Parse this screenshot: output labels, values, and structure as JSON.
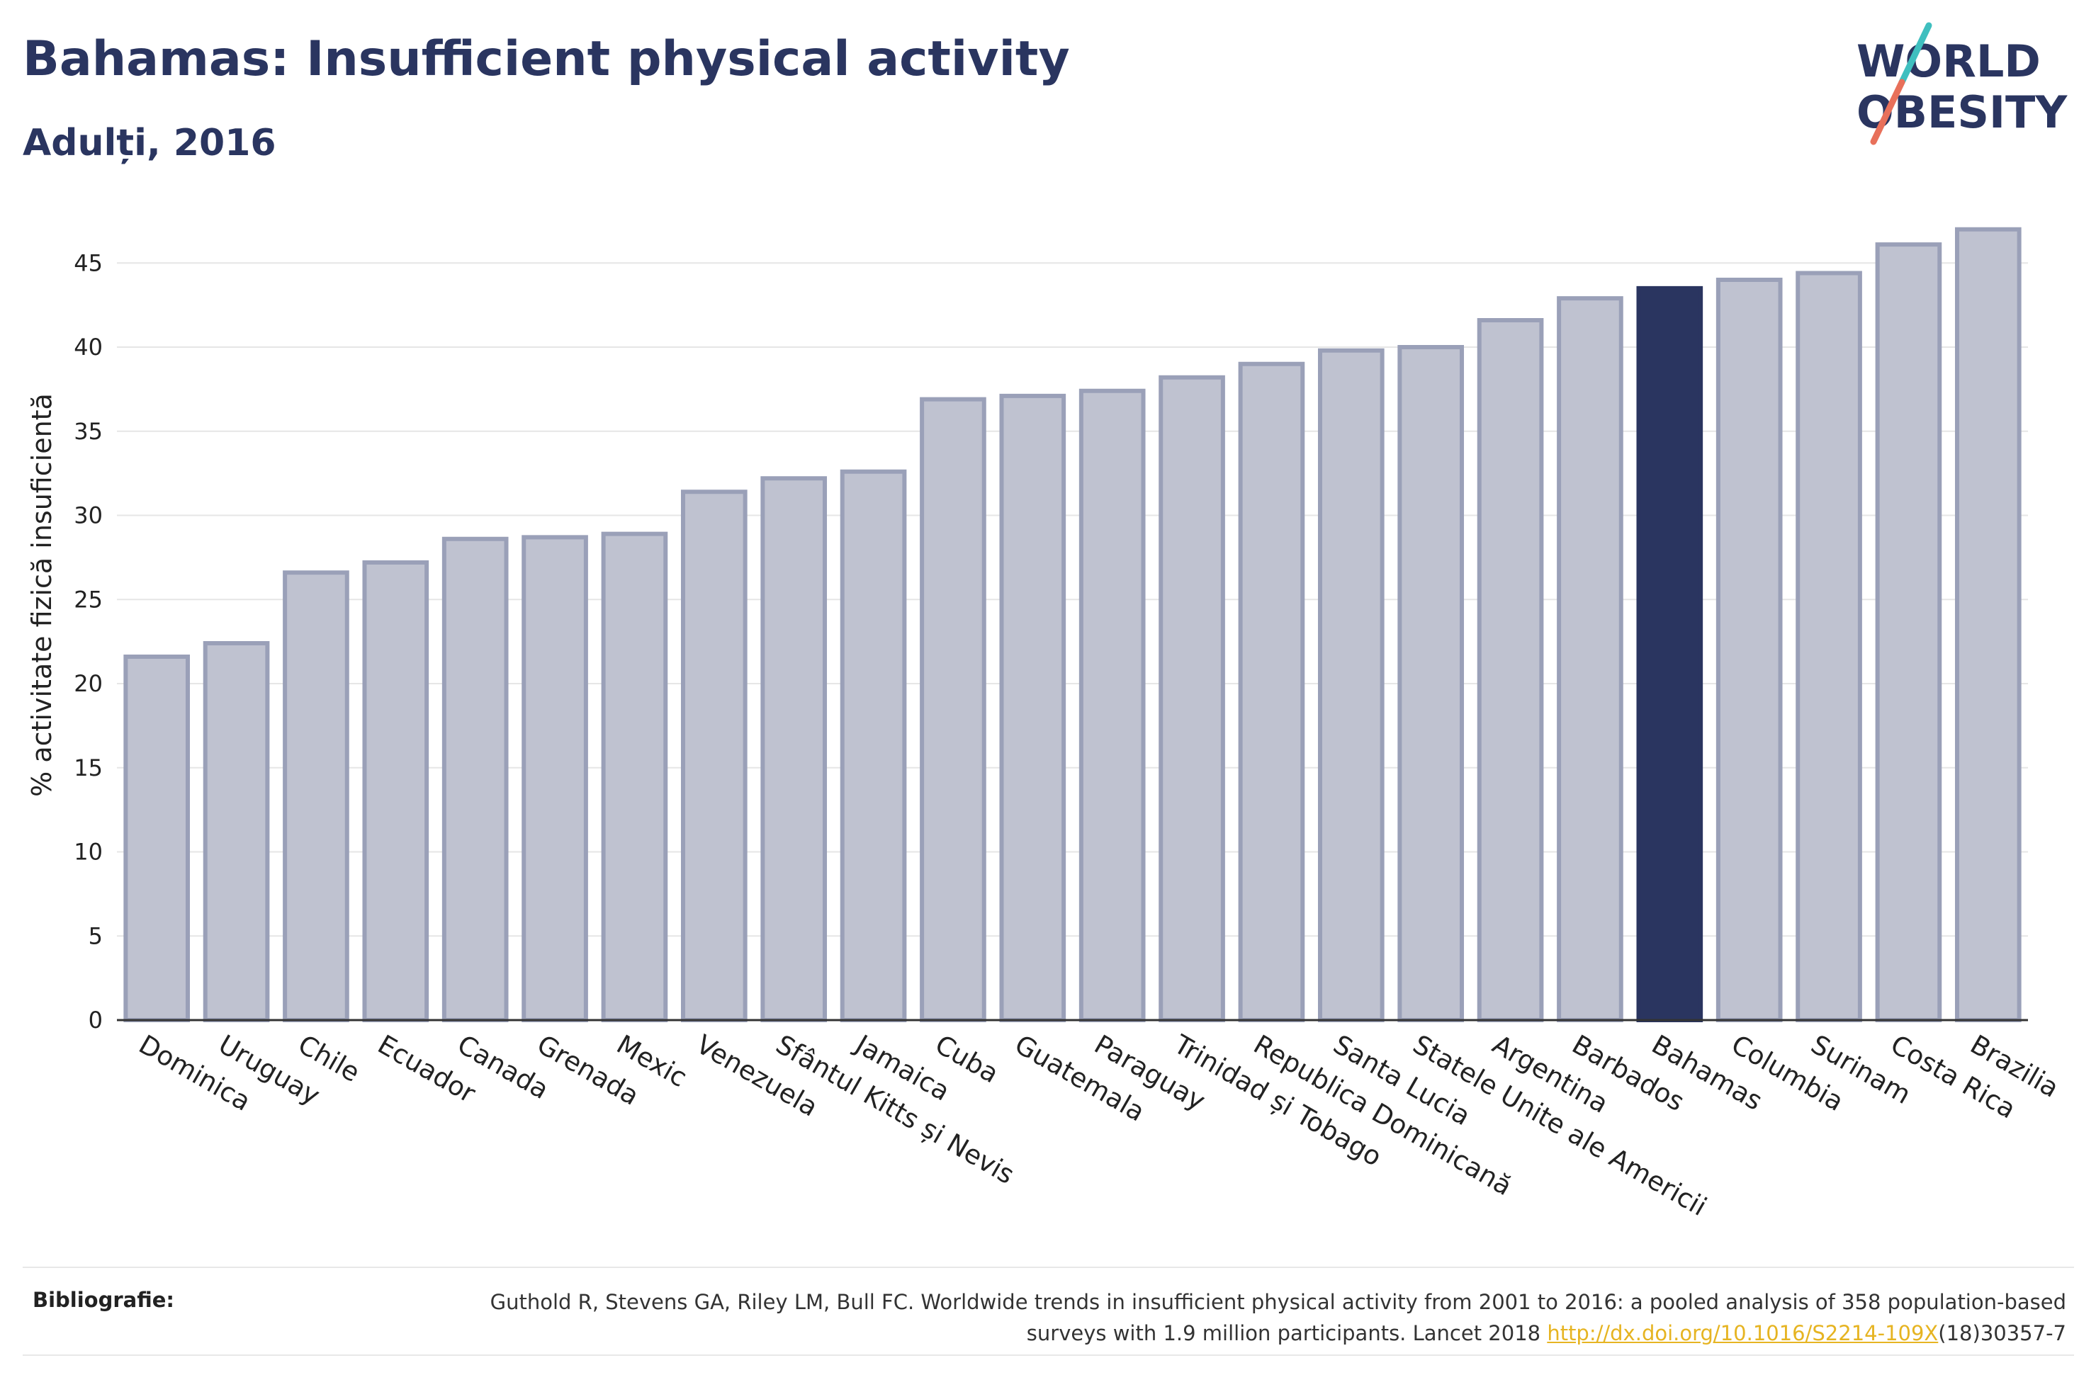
{
  "header": {
    "title": "Bahamas: Insufficient physical activity",
    "subtitle": "Adulți, 2016"
  },
  "logo": {
    "line1": "WORLD",
    "line2": "OBESITY"
  },
  "colors": {
    "highlight": "#2a3560",
    "bar_fill": "#bfc2d0",
    "bar_stroke": "#9aa0b8",
    "logo_teal": "#3fbfbf",
    "logo_coral": "#e8705a",
    "link": "#e6b422"
  },
  "chart_data": {
    "type": "bar",
    "title": "Bahamas: Insufficient physical activity",
    "subtitle": "Adulți, 2016",
    "xlabel": "",
    "ylabel": "% activitate fizică insuficientă",
    "ylim": [
      0,
      48
    ],
    "yticks": [
      0,
      5,
      10,
      15,
      20,
      25,
      30,
      35,
      40,
      45
    ],
    "grid": true,
    "highlight": "Bahamas",
    "categories": [
      "Dominica",
      "Uruguay",
      "Chile",
      "Ecuador",
      "Canada",
      "Grenada",
      "Mexic",
      "Venezuela",
      "Sfântul Kitts și Nevis",
      "Jamaica",
      "Cuba",
      "Guatemala",
      "Paraguay",
      "Trinidad și Tobago",
      "Republica Dominicană",
      "Santa Lucia",
      "Statele Unite ale Americii",
      "Argentina",
      "Barbados",
      "Bahamas",
      "Columbia",
      "Surinam",
      "Costa Rica",
      "Brazilia"
    ],
    "values": [
      21.6,
      22.4,
      26.6,
      27.2,
      28.6,
      28.7,
      28.9,
      31.4,
      32.2,
      32.6,
      36.9,
      37.1,
      37.4,
      38.2,
      39.0,
      39.8,
      40.0,
      41.6,
      42.9,
      43.5,
      44.0,
      44.4,
      46.1,
      47.0
    ]
  },
  "footer": {
    "label": "Bibliografie:",
    "text_before": "Guthold R, Stevens GA, Riley LM, Bull FC. Worldwide trends in insufficient physical activity from 2001 to 2016: a pooled analysis of 358 population-based surveys with 1.9 million participants. Lancet 2018 ",
    "link_text": "http://dx.doi.org/10.1016/S2214-109X",
    "text_after": "(18)30357-7"
  }
}
